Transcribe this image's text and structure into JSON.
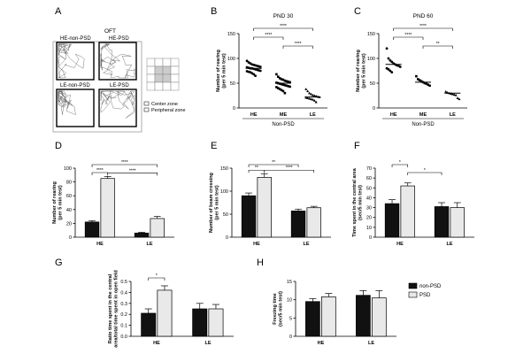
{
  "colors": {
    "black_bar": "#111111",
    "white_bar": "#e9e9e9",
    "frame": "#111111",
    "gray_cell": "#cccccc"
  },
  "panel_a": {
    "letter": "A",
    "title": "OFT",
    "labels": [
      "HE-non-PSD",
      "HE-PSD",
      "LE-non-PSD",
      "LE-PSD"
    ],
    "legend": [
      "Center zone",
      "Peripheral zone"
    ]
  },
  "chart_data": [
    {
      "panel": "B",
      "type": "scatter",
      "title": "PND 30",
      "ylabel": "Number of rearing\n(per 5 min test)",
      "categories": [
        "HE",
        "ME",
        "LE"
      ],
      "xlabel": "Non-PSD",
      "ylim": [
        0,
        150
      ],
      "yticks": [
        0,
        50,
        100,
        150
      ],
      "means": [
        80,
        50,
        22
      ],
      "points": [
        [
          95,
          92,
          90,
          88,
          87,
          86,
          85,
          84,
          83,
          82,
          81,
          80,
          80,
          79,
          78,
          77,
          76,
          75,
          74,
          73,
          72,
          70,
          68,
          65
        ],
        [
          68,
          63,
          60,
          58,
          57,
          55,
          54,
          53,
          52,
          51,
          50,
          49,
          48,
          47,
          46,
          45,
          44,
          43,
          42,
          40,
          38,
          36,
          34,
          30
        ],
        [
          38,
          34,
          30,
          28,
          26,
          25,
          24,
          23,
          22,
          21,
          20,
          19,
          18,
          17,
          15,
          12
        ]
      ],
      "markers": [
        "circle",
        "square",
        "triangle"
      ],
      "significance": [
        {
          "from": 0,
          "to": 2,
          "label": "****"
        },
        {
          "from": 0,
          "to": 1,
          "label": "****"
        },
        {
          "from": 1,
          "to": 2,
          "label": "****"
        }
      ]
    },
    {
      "panel": "C",
      "type": "scatter",
      "title": "PND 60",
      "ylabel": "Number of rearing\n(per 5 min test)",
      "categories": [
        "HE",
        "ME",
        "LE"
      ],
      "xlabel": "Non-PSD",
      "ylim": [
        0,
        150
      ],
      "yticks": [
        0,
        50,
        100,
        150
      ],
      "means": [
        88,
        52,
        30
      ],
      "points": [
        [
          120,
          100,
          96,
          93,
          90,
          88,
          86,
          85,
          83,
          80,
          78,
          75,
          72
        ],
        [
          64,
          58,
          56,
          54,
          52,
          50,
          49,
          47,
          45
        ],
        [
          33,
          31,
          30,
          29,
          28,
          27,
          26,
          20,
          18
        ]
      ],
      "markers": [
        "circle",
        "square",
        "triangle"
      ],
      "significance": [
        {
          "from": 0,
          "to": 2,
          "label": "****"
        },
        {
          "from": 0,
          "to": 1,
          "label": "****"
        },
        {
          "from": 1,
          "to": 2,
          "label": "**"
        }
      ]
    },
    {
      "panel": "D",
      "type": "bar",
      "ylabel": "Number of rearing\n(per 5 min test)",
      "categories": [
        "HE",
        "LE"
      ],
      "series": [
        {
          "values": [
            22,
            6
          ],
          "errors": [
            2,
            1
          ]
        },
        {
          "values": [
            85,
            27
          ],
          "errors": [
            3,
            3
          ]
        }
      ],
      "ylim": [
        0,
        100
      ],
      "yticks": [
        0,
        20,
        40,
        60,
        80,
        100
      ],
      "significance": [
        {
          "from": [
            0,
            0
          ],
          "to": [
            1,
            1
          ],
          "label": "****"
        },
        {
          "from": [
            0,
            0
          ],
          "to": [
            0,
            1
          ],
          "label": "****"
        },
        {
          "from": [
            0,
            1
          ],
          "to": [
            1,
            1
          ],
          "label": "****"
        }
      ]
    },
    {
      "panel": "E",
      "type": "bar",
      "ylabel": "Number of beam crossing\n(per 5 min test)",
      "categories": [
        "HE",
        "LE"
      ],
      "series": [
        {
          "values": [
            90,
            57
          ],
          "errors": [
            6,
            4
          ]
        },
        {
          "values": [
            130,
            64
          ],
          "errors": [
            8,
            3
          ]
        }
      ],
      "ylim": [
        0,
        150
      ],
      "yticks": [
        0,
        50,
        100,
        150
      ],
      "significance": [
        {
          "from": [
            0,
            0
          ],
          "to": [
            1,
            0
          ],
          "label": "**"
        },
        {
          "from": [
            0,
            0
          ],
          "to": [
            0,
            1
          ],
          "label": "**"
        },
        {
          "from": [
            0,
            1
          ],
          "to": [
            1,
            1
          ],
          "label": "****"
        }
      ]
    },
    {
      "panel": "F",
      "type": "bar",
      "ylabel": "Time spent in the central area\n(sec/5 min test)",
      "categories": [
        "HE",
        "LE"
      ],
      "series": [
        {
          "values": [
            34,
            31
          ],
          "errors": [
            4,
            4
          ]
        },
        {
          "values": [
            52,
            30
          ],
          "errors": [
            3,
            5
          ]
        }
      ],
      "ylim": [
        0,
        70
      ],
      "yticks": [
        0,
        10,
        20,
        30,
        40,
        50,
        60,
        70
      ],
      "significance": [
        {
          "from": [
            0,
            0
          ],
          "to": [
            0,
            1
          ],
          "label": "*"
        },
        {
          "from": [
            0,
            1
          ],
          "to": [
            1,
            0
          ],
          "label": "*"
        }
      ]
    },
    {
      "panel": "G",
      "type": "bar",
      "ylabel": "Ratio time spent in the central\narea/total time spent in open field",
      "categories": [
        "HE",
        "LE"
      ],
      "series": [
        {
          "values": [
            0.21,
            0.25
          ],
          "errors": [
            0.04,
            0.05
          ]
        },
        {
          "values": [
            0.42,
            0.25
          ],
          "errors": [
            0.04,
            0.04
          ]
        }
      ],
      "ylim": [
        0,
        0.5
      ],
      "yticks": [
        0,
        0.1,
        0.2,
        0.3,
        0.4,
        0.5
      ],
      "significance": [
        {
          "from": [
            0,
            0
          ],
          "to": [
            0,
            1
          ],
          "label": "*"
        }
      ]
    },
    {
      "panel": "H",
      "type": "bar",
      "ylabel": "Freezing time\n(sec/5 min test)",
      "categories": [
        "HE",
        "LE"
      ],
      "series": [
        {
          "name": "non-PSD",
          "values": [
            9.5,
            11.2
          ],
          "errors": [
            0.8,
            1.3
          ]
        },
        {
          "name": "PSD",
          "values": [
            10.8,
            10.5
          ],
          "errors": [
            0.9,
            2.0
          ]
        }
      ],
      "ylim": [
        0,
        15
      ],
      "yticks": [
        0,
        5,
        10,
        15
      ],
      "legend": "right",
      "significance": []
    }
  ]
}
